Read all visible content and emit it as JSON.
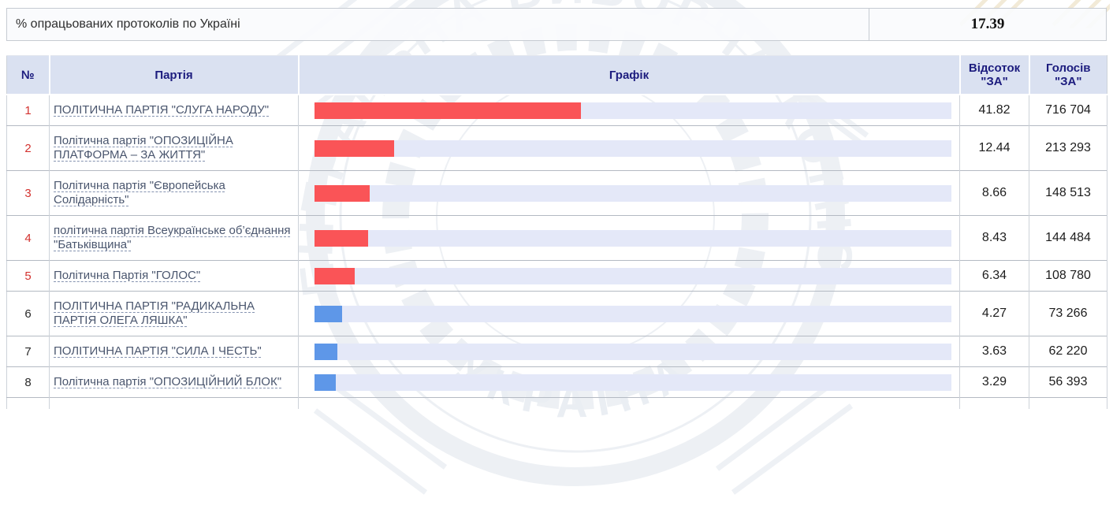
{
  "summary": {
    "label": "% опрацьованих протоколів по Україні",
    "value": "17.39"
  },
  "table": {
    "headers": {
      "num": "№",
      "party": "Партія",
      "graph": "Графік",
      "percent_line1": "Відсоток",
      "percent_line2": "\"ЗА\"",
      "votes_line1": "Голосів",
      "votes_line2": "\"ЗА\""
    },
    "rows": [
      {
        "num": "1",
        "party": "ПОЛІТИЧНА ПАРТІЯ \"СЛУГА НАРОДУ\"",
        "value": 41.82,
        "percent": "41.82",
        "votes": "716 704",
        "bar_color": "red_bar",
        "num_color": "red"
      },
      {
        "num": "2",
        "party": "Політична партія \"ОПОЗИЦІЙНА ПЛАТФОРМА – ЗА ЖИТТЯ\"",
        "value": 12.44,
        "percent": "12.44",
        "votes": "213 293",
        "bar_color": "red_bar",
        "num_color": "red"
      },
      {
        "num": "3",
        "party": "Політична партія \"Європейська Солідарність\"",
        "value": 8.66,
        "percent": "8.66",
        "votes": "148 513",
        "bar_color": "red_bar",
        "num_color": "red"
      },
      {
        "num": "4",
        "party": "політична партія Всеукраїнське об’єднання \"Батьківщина\"",
        "value": 8.43,
        "percent": "8.43",
        "votes": "144 484",
        "bar_color": "red_bar",
        "num_color": "red"
      },
      {
        "num": "5",
        "party": "Політична Партія \"ГОЛОС\"",
        "value": 6.34,
        "percent": "6.34",
        "votes": "108 780",
        "bar_color": "red_bar",
        "num_color": "red"
      },
      {
        "num": "6",
        "party": "ПОЛІТИЧНА ПАРТІЯ \"РАДИКАЛЬНА ПАРТІЯ ОЛЕГА ЛЯШКА\"",
        "value": 4.27,
        "percent": "4.27",
        "votes": "73 266",
        "bar_color": "blue_bar",
        "num_color": "default"
      },
      {
        "num": "7",
        "party": "ПОЛІТИЧНА ПАРТІЯ \"СИЛА І ЧЕСТЬ\"",
        "value": 3.63,
        "percent": "3.63",
        "votes": "62 220",
        "bar_color": "blue_bar",
        "num_color": "default"
      },
      {
        "num": "8",
        "party": "Політична партія \"ОПОЗИЦІЙНИЙ БЛОК\"",
        "value": 3.29,
        "percent": "3.29",
        "votes": "56 393",
        "bar_color": "blue_bar",
        "num_color": "default"
      }
    ]
  },
  "theme": {
    "red_bar": "#fa5457",
    "blue_bar": "#5e97e8",
    "track": "#e4e8f8",
    "header_bg": "#dae1f1",
    "header_text": "#1c1c7e",
    "red_number": "#d3322f",
    "link_color": "#4a566e"
  },
  "watermark": {
    "text_top": "ЦЕНТРАЛЬНА ВИБОРЧА КОМІСІЯ",
    "text_bottom": "УКРАЇНА"
  }
}
